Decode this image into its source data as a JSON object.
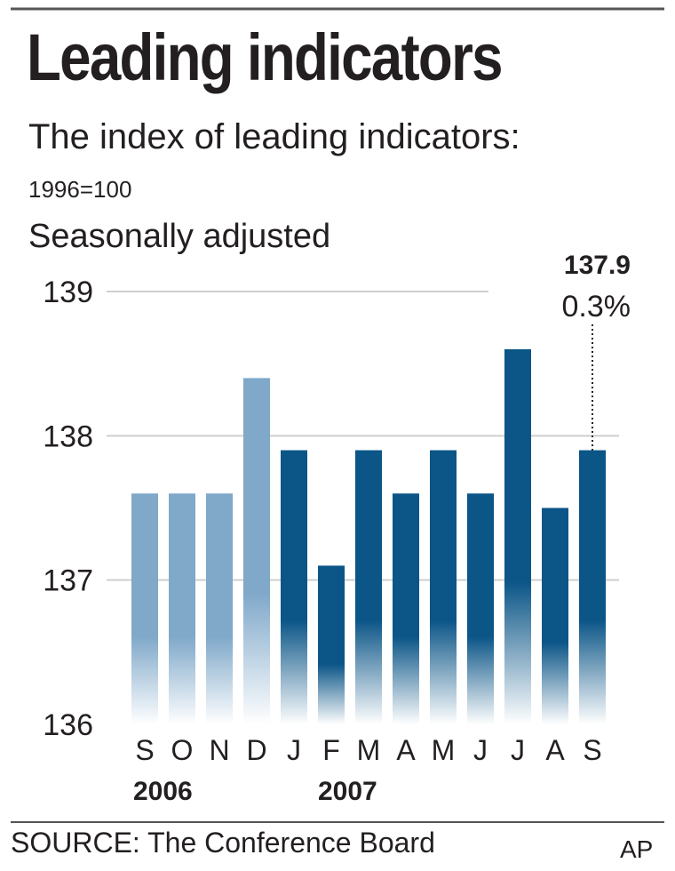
{
  "title": "Leading indicators",
  "subtitle": "The index of leading indicators:",
  "base_note": "1996=100",
  "adjustment_note": "Seasonally adjusted",
  "source": "SOURCE: The Conference Board",
  "credit": "AP",
  "chart_data": {
    "type": "bar",
    "categories": [
      "S",
      "O",
      "N",
      "D",
      "J",
      "F",
      "M",
      "A",
      "M",
      "J",
      "J",
      "A",
      "S"
    ],
    "year_labels": [
      "2006",
      "2007"
    ],
    "values": [
      137.6,
      137.6,
      137.6,
      138.4,
      137.9,
      137.1,
      137.9,
      137.6,
      137.9,
      137.6,
      138.6,
      137.5,
      137.9
    ],
    "ylim": [
      136,
      139
    ],
    "yticks": [
      "136",
      "137",
      "138",
      "139"
    ],
    "grid": true,
    "colors": {
      "2006": "#7fa8c9",
      "2007": "#0b5587"
    },
    "annotation": {
      "value": "137.9",
      "change": "0.3%"
    }
  }
}
